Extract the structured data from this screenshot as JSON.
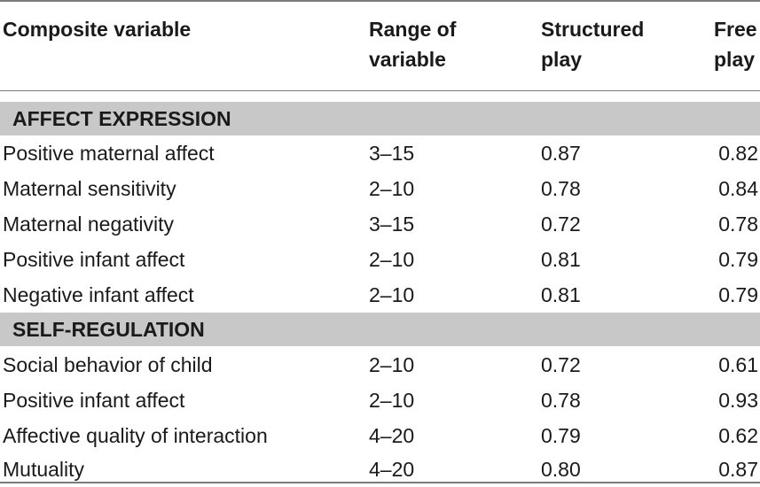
{
  "header": {
    "col0": "Composite variable",
    "col1_line1": "Range of",
    "col1_line2": "variable",
    "col2_line1": "Structured",
    "col2_line2": "play",
    "col3_line1": "Free",
    "col3_line2": "play"
  },
  "sections": [
    {
      "title": "AFFECT EXPRESSION",
      "rows": [
        {
          "variable": "Positive maternal affect",
          "range": "3–15",
          "structured": "0.87",
          "free": "0.82"
        },
        {
          "variable": "Maternal sensitivity",
          "range": "2–10",
          "structured": "0.78",
          "free": "0.84"
        },
        {
          "variable": "Maternal negativity",
          "range": "3–15",
          "structured": "0.72",
          "free": "0.78"
        },
        {
          "variable": "Positive infant affect",
          "range": "2–10",
          "structured": "0.81",
          "free": "0.79"
        },
        {
          "variable": "Negative infant affect",
          "range": "2–10",
          "structured": "0.81",
          "free": "0.79"
        }
      ]
    },
    {
      "title": "SELF-REGULATION",
      "rows": [
        {
          "variable": "Social behavior of child",
          "range": "2–10",
          "structured": "0.72",
          "free": "0.61"
        },
        {
          "variable": "Positive infant affect",
          "range": "2–10",
          "structured": "0.78",
          "free": "0.93"
        },
        {
          "variable": "Affective quality of interaction",
          "range": "4–20",
          "structured": "0.79",
          "free": "0.62"
        },
        {
          "variable": "Mutuality",
          "range": "4–20",
          "structured": "0.80",
          "free": "0.87"
        }
      ]
    }
  ]
}
